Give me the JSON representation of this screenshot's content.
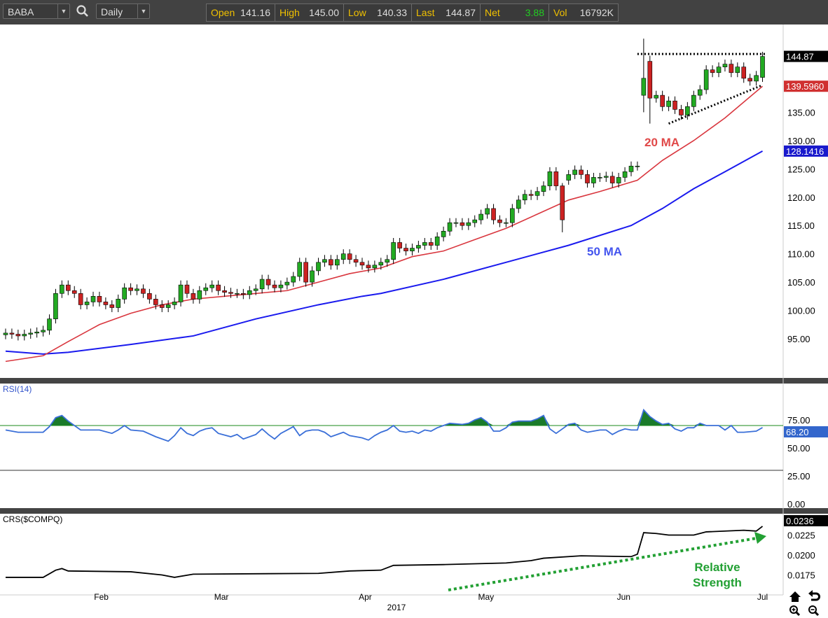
{
  "toolbar": {
    "symbol": "BABA",
    "interval": "Daily",
    "search_icon": "search-icon"
  },
  "quote": [
    {
      "label": "Open",
      "value": "141.16"
    },
    {
      "label": "High",
      "value": "145.00"
    },
    {
      "label": "Low",
      "value": "140.33"
    },
    {
      "label": "Last",
      "value": "144.87"
    },
    {
      "label": "Net",
      "value": "3.88",
      "color": "#22cc22"
    },
    {
      "label": "Vol",
      "value": "16792K"
    }
  ],
  "chart_data": [
    {
      "type": "candlestick",
      "title": "BABA Daily",
      "yticks": [
        "95.00",
        "100.00",
        "105.00",
        "110.00",
        "115.00",
        "120.00",
        "125.00",
        "130.00",
        "135.00"
      ],
      "ylim": [
        89,
        150
      ],
      "xticks": [
        {
          "label": "Feb",
          "index": 15.3
        },
        {
          "label": "Mar",
          "index": 34.5
        },
        {
          "label": "Apr",
          "index": 57.5
        },
        {
          "label": "May",
          "index": 76.8
        },
        {
          "label": "Jun",
          "index": 98.8
        },
        {
          "label": "Jul",
          "index": 121
        }
      ],
      "year_label": "2017",
      "closes": [
        96,
        95.8,
        95.5,
        95.8,
        96,
        96.2,
        96.5,
        98.5,
        103,
        104.5,
        103.5,
        103,
        101,
        101.5,
        102.5,
        101.5,
        101,
        100.5,
        102,
        104,
        103.5,
        103.8,
        103,
        102,
        101,
        100.5,
        101,
        101.5,
        104.5,
        103,
        102,
        103.5,
        104,
        104.5,
        103.5,
        103.2,
        103,
        103,
        102.8,
        103.5,
        103.8,
        105.5,
        104.5,
        104,
        104.5,
        105,
        106,
        108.5,
        105,
        107,
        108.5,
        109,
        108,
        109,
        110,
        109,
        108.5,
        108,
        107.5,
        108,
        108.5,
        109,
        112,
        111,
        110.5,
        111,
        111.5,
        112,
        111.5,
        113,
        114,
        115.5,
        115.5,
        115,
        115.5,
        116,
        117,
        118,
        116,
        115.5,
        115.5,
        118,
        119.5,
        120.5,
        120.3,
        121,
        122,
        124.5,
        122,
        116,
        124,
        124.8,
        124,
        122.5,
        123.5,
        123.5,
        123.7,
        122.5,
        123.5,
        124.5,
        125.5,
        125.5,
        141,
        137.5,
        138,
        136,
        137,
        135.5,
        134.5,
        136,
        138,
        139,
        142.5,
        142,
        143,
        143.5,
        142,
        143,
        141,
        140.5,
        141.5,
        144.87
      ],
      "open_overrides": {
        "89": 122,
        "90": 123,
        "102": 138,
        "103": 144,
        "121": 141.16
      },
      "ma20": {
        "name": "20 MA",
        "color": "#d9363e",
        "points": [
          [
            0,
            91
          ],
          [
            6,
            92
          ],
          [
            10,
            94.5
          ],
          [
            15,
            97.5
          ],
          [
            20,
            99.5
          ],
          [
            25,
            101
          ],
          [
            30,
            102
          ],
          [
            35,
            102.5
          ],
          [
            40,
            103
          ],
          [
            45,
            103.5
          ],
          [
            50,
            105
          ],
          [
            55,
            106.5
          ],
          [
            60,
            107.5
          ],
          [
            65,
            109.5
          ],
          [
            70,
            110.5
          ],
          [
            75,
            112.5
          ],
          [
            80,
            114.5
          ],
          [
            85,
            117
          ],
          [
            90,
            119.5
          ],
          [
            95,
            121
          ],
          [
            101,
            123
          ],
          [
            105,
            126.5
          ],
          [
            110,
            130
          ],
          [
            115,
            134
          ],
          [
            121,
            139.596
          ]
        ]
      },
      "ma50": {
        "name": "50 MA",
        "color": "#1a1aee",
        "points": [
          [
            0,
            92.8
          ],
          [
            6,
            92.3
          ],
          [
            10,
            92.6
          ],
          [
            20,
            94
          ],
          [
            30,
            95.5
          ],
          [
            40,
            98.5
          ],
          [
            50,
            101
          ],
          [
            57,
            102.5
          ],
          [
            60,
            103
          ],
          [
            70,
            105.5
          ],
          [
            80,
            108.5
          ],
          [
            90,
            111.5
          ],
          [
            100,
            115
          ],
          [
            105,
            118
          ],
          [
            110,
            121.5
          ],
          [
            115,
            124.5
          ],
          [
            121,
            128.1416
          ]
        ]
      },
      "last_label": "144.87",
      "ma20_label": "139.5960",
      "ma50_label": "128.1416",
      "annotations": [
        "20 MA",
        "50 MA"
      ],
      "resistance": [
        [
          101,
          145.3
        ],
        [
          121,
          145.3
        ]
      ],
      "support": [
        [
          106,
          133
        ],
        [
          121,
          139.8
        ]
      ]
    },
    {
      "type": "line",
      "title": "RSI(14)",
      "ylim": [
        0,
        100
      ],
      "yticks": [
        "75.00",
        "50.00",
        "25.00",
        "0.00"
      ],
      "overbought": 70,
      "oversold": 30,
      "last_label": "68.20",
      "points": [
        [
          0,
          66
        ],
        [
          2,
          64
        ],
        [
          6,
          64
        ],
        [
          7,
          69
        ],
        [
          8,
          77
        ],
        [
          9,
          79
        ],
        [
          10,
          74
        ],
        [
          11,
          70
        ],
        [
          12,
          66
        ],
        [
          15,
          66
        ],
        [
          17,
          63
        ],
        [
          18,
          66
        ],
        [
          19,
          70
        ],
        [
          20,
          66
        ],
        [
          22,
          65
        ],
        [
          24,
          60
        ],
        [
          26,
          56
        ],
        [
          27,
          61
        ],
        [
          28,
          68
        ],
        [
          29,
          63
        ],
        [
          30,
          61
        ],
        [
          31,
          65
        ],
        [
          32,
          67
        ],
        [
          33,
          68
        ],
        [
          34,
          63
        ],
        [
          36,
          60
        ],
        [
          37,
          62
        ],
        [
          38,
          58
        ],
        [
          40,
          62
        ],
        [
          41,
          67
        ],
        [
          42,
          62
        ],
        [
          43,
          58
        ],
        [
          44,
          63
        ],
        [
          45,
          66
        ],
        [
          46,
          69
        ],
        [
          47,
          61
        ],
        [
          48,
          65
        ],
        [
          49,
          66
        ],
        [
          50,
          66
        ],
        [
          51,
          64
        ],
        [
          52,
          60
        ],
        [
          54,
          64
        ],
        [
          55,
          61
        ],
        [
          56,
          60
        ],
        [
          57,
          59
        ],
        [
          58,
          57
        ],
        [
          59,
          61
        ],
        [
          60,
          64
        ],
        [
          61,
          66
        ],
        [
          62,
          70
        ],
        [
          63,
          65
        ],
        [
          64,
          64
        ],
        [
          65,
          65
        ],
        [
          66,
          63
        ],
        [
          67,
          66
        ],
        [
          68,
          65
        ],
        [
          69,
          68
        ],
        [
          70,
          70
        ],
        [
          71,
          72
        ],
        [
          73,
          71
        ],
        [
          74,
          72
        ],
        [
          75,
          75
        ],
        [
          76,
          77
        ],
        [
          77,
          73
        ],
        [
          78,
          65
        ],
        [
          79,
          65
        ],
        [
          80,
          68
        ],
        [
          81,
          73
        ],
        [
          82,
          74
        ],
        [
          84,
          74
        ],
        [
          85,
          76
        ],
        [
          86,
          79
        ],
        [
          87,
          67
        ],
        [
          88,
          63
        ],
        [
          89,
          67
        ],
        [
          90,
          71
        ],
        [
          91,
          72
        ],
        [
          92,
          66
        ],
        [
          93,
          64
        ],
        [
          95,
          66
        ],
        [
          96,
          66
        ],
        [
          97,
          62
        ],
        [
          98,
          65
        ],
        [
          99,
          67
        ],
        [
          100,
          66
        ],
        [
          101,
          66
        ],
        [
          102,
          84
        ],
        [
          103,
          78
        ],
        [
          104,
          74
        ],
        [
          105,
          71
        ],
        [
          106,
          72
        ],
        [
          107,
          67
        ],
        [
          108,
          65
        ],
        [
          109,
          68
        ],
        [
          110,
          68
        ],
        [
          111,
          72
        ],
        [
          112,
          70
        ],
        [
          114,
          70
        ],
        [
          115,
          66
        ],
        [
          116,
          70
        ],
        [
          117,
          64
        ],
        [
          118,
          64
        ],
        [
          120,
          65
        ],
        [
          121,
          68.2
        ]
      ]
    },
    {
      "type": "line",
      "title": "CRS($COMPQ)",
      "yticks": [
        "0.0225",
        "0.0200",
        "0.0175"
      ],
      "ylim": [
        0.0155,
        0.025
      ],
      "last_label": "0.0236",
      "points": [
        [
          0,
          0.0172
        ],
        [
          6,
          0.0172
        ],
        [
          8,
          0.0181
        ],
        [
          9,
          0.0183
        ],
        [
          10,
          0.018
        ],
        [
          20,
          0.0179
        ],
        [
          25,
          0.0175
        ],
        [
          27,
          0.0172
        ],
        [
          30,
          0.0176
        ],
        [
          50,
          0.0177
        ],
        [
          55,
          0.018
        ],
        [
          60,
          0.0181
        ],
        [
          62,
          0.0187
        ],
        [
          70,
          0.0188
        ],
        [
          80,
          0.019
        ],
        [
          84,
          0.0193
        ],
        [
          86,
          0.0196
        ],
        [
          92,
          0.0199
        ],
        [
          100,
          0.0198
        ],
        [
          101,
          0.0201
        ],
        [
          102,
          0.0228
        ],
        [
          104,
          0.0227
        ],
        [
          106,
          0.0225
        ],
        [
          110,
          0.0225
        ],
        [
          112,
          0.0229
        ],
        [
          118,
          0.0231
        ],
        [
          120,
          0.023
        ],
        [
          121,
          0.0236
        ]
      ],
      "annotation": "Relative Strength"
    }
  ]
}
